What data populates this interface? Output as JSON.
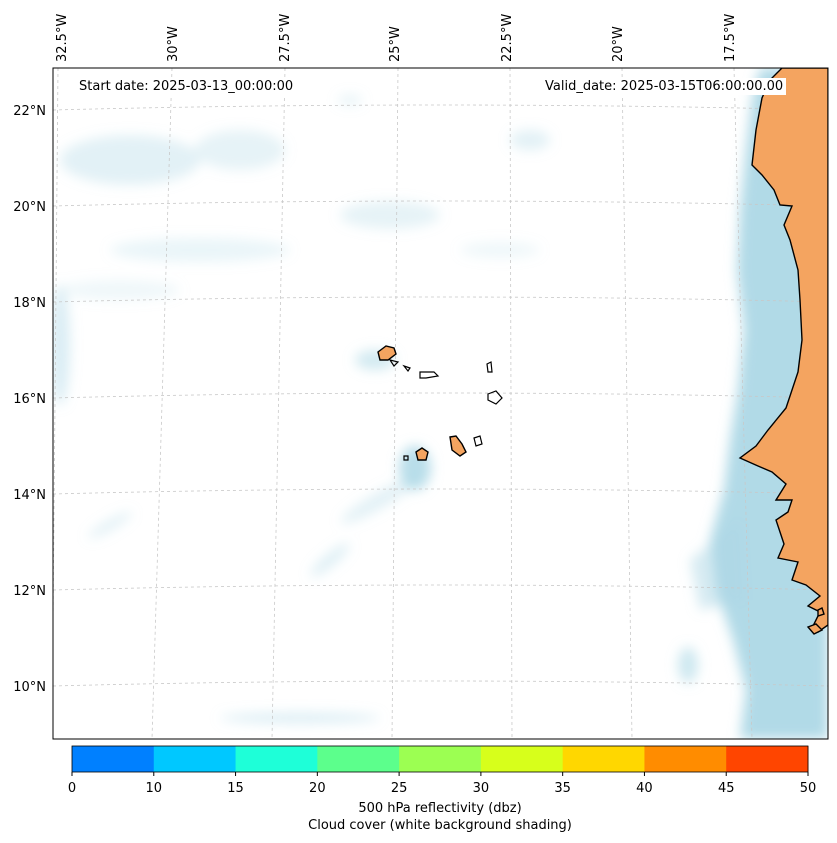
{
  "annotations": {
    "start_date": "Start date: 2025-03-13_00:00:00",
    "valid_date": "Valid_date: 2025-03-15T06:00:00.00"
  },
  "map": {
    "longitude_labels": [
      "32.5°W",
      "30°W",
      "27.5°W",
      "25°W",
      "22.5°W",
      "20°W",
      "17.5°W"
    ],
    "latitude_labels": [
      "22°N",
      "20°N",
      "18°N",
      "16°N",
      "14°N",
      "12°N",
      "10°N"
    ],
    "colors": {
      "land": "#f4a460",
      "coastline": "#000000",
      "cloud_cover": "#add8e6",
      "gridlines": "#c8c8c8"
    }
  },
  "colorbar": {
    "ticks": [
      "0",
      "10",
      "15",
      "20",
      "25",
      "30",
      "35",
      "40",
      "45",
      "50"
    ],
    "colors": [
      "#0080ff",
      "#00c8ff",
      "#1effd8",
      "#5cff8c",
      "#9cff52",
      "#d7ff1b",
      "#ffd700",
      "#ff8c00",
      "#ff4500"
    ],
    "label_line1": "500 hPa reflectivity (dbz)",
    "label_line2": "Cloud cover (white background shading)"
  }
}
